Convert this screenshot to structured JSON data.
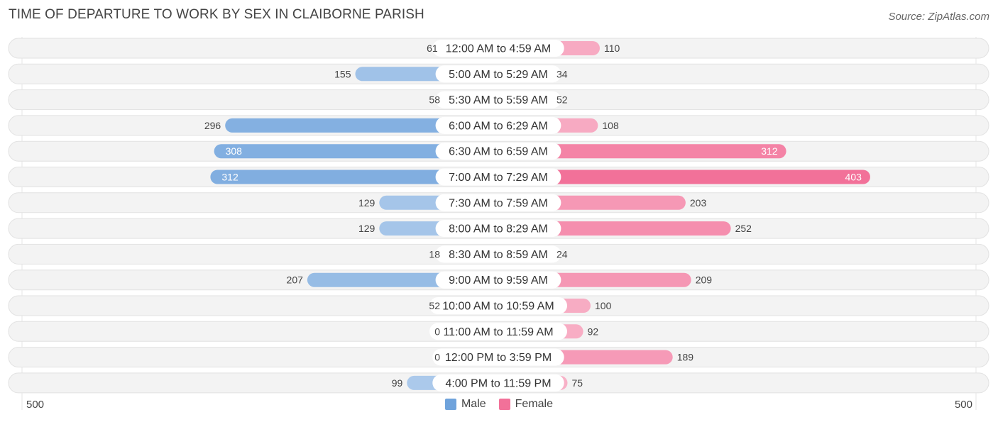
{
  "header": {
    "title": "TIME OF DEPARTURE TO WORK BY SEX IN CLAIBORNE PARISH",
    "source": "Source: ZipAtlas.com"
  },
  "axis": {
    "left_label": "500",
    "right_label": "500"
  },
  "legend": {
    "male_label": "Male",
    "female_label": "Female",
    "male_color": "#6fa3dc",
    "female_color": "#f27199"
  },
  "chart_data": {
    "type": "bar",
    "orientation": "horizontal-diverging",
    "title": "TIME OF DEPARTURE TO WORK BY SEX IN CLAIBORNE PARISH",
    "xlim": [
      -500,
      500
    ],
    "categories": [
      "12:00 AM to 4:59 AM",
      "5:00 AM to 5:29 AM",
      "5:30 AM to 5:59 AM",
      "6:00 AM to 6:29 AM",
      "6:30 AM to 6:59 AM",
      "7:00 AM to 7:29 AM",
      "7:30 AM to 7:59 AM",
      "8:00 AM to 8:29 AM",
      "8:30 AM to 8:59 AM",
      "9:00 AM to 9:59 AM",
      "10:00 AM to 10:59 AM",
      "11:00 AM to 11:59 AM",
      "12:00 PM to 3:59 PM",
      "4:00 PM to 11:59 PM"
    ],
    "series": [
      {
        "name": "Male",
        "color": "#6fa3dc",
        "values": [
          61,
          155,
          58,
          296,
          308,
          312,
          129,
          129,
          18,
          207,
          52,
          0,
          0,
          99
        ]
      },
      {
        "name": "Female",
        "color": "#f27199",
        "values": [
          110,
          34,
          52,
          108,
          312,
          403,
          203,
          252,
          24,
          209,
          100,
          92,
          189,
          75
        ]
      }
    ],
    "legend_position": "bottom-center"
  }
}
